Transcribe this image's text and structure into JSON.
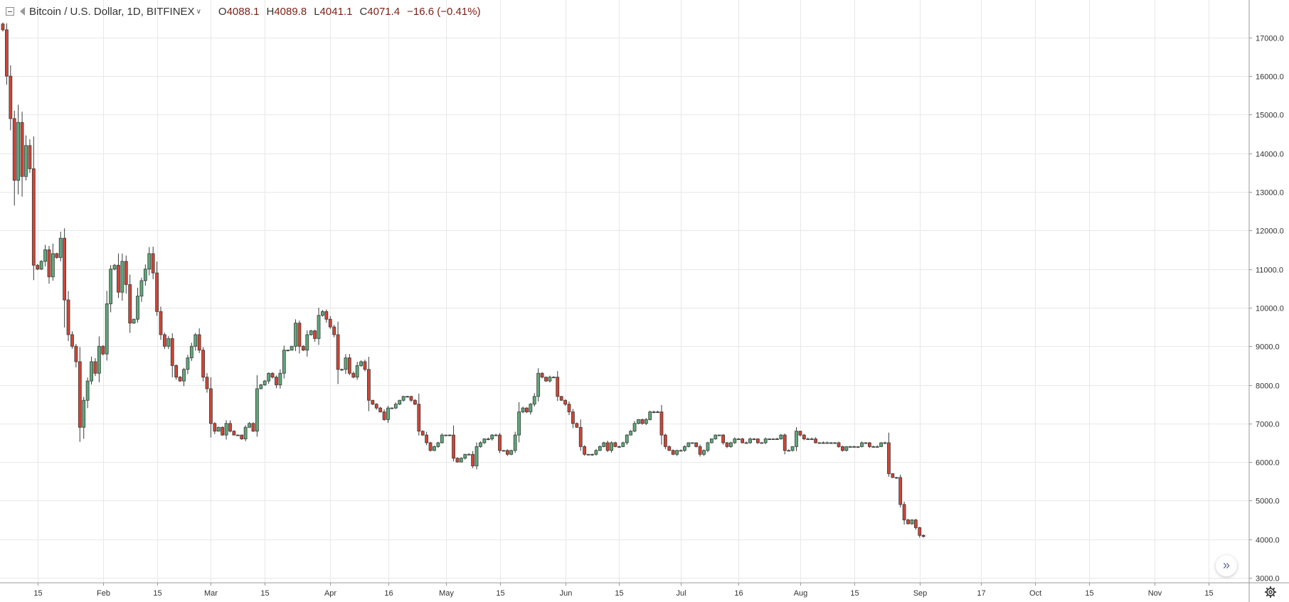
{
  "header": {
    "symbol": "Bitcoin / U.S. Dollar, 1D, BITFINEX",
    "open": "4088.1",
    "high": "4089.8",
    "low": "4041.1",
    "close": "4071.4",
    "change": "−16.6 (−0.41%)"
  },
  "icons": [
    "collapse-icon",
    "flag-icon",
    "chevron-down-icon",
    "scroll-right-icon",
    "settings-icon"
  ],
  "colors": {
    "up": "#5ea97a",
    "down": "#d24434",
    "grid": "#e8e8e8",
    "text": "#333333"
  },
  "chart_data": {
    "type": "candlestick",
    "title": "",
    "y_axis": {
      "min": 3000,
      "max": 17400,
      "ticks": [
        3000,
        4000,
        5000,
        6000,
        7000,
        8000,
        9000,
        10000,
        11000,
        12000,
        13000,
        14000,
        15000,
        16000,
        17000
      ],
      "tick_labels": [
        "3000.0",
        "4000.0",
        "5000.0",
        "6000.0",
        "7000.0",
        "8000.0",
        "9000.0",
        "10000.0",
        "11000.0",
        "12000.0",
        "13000.0",
        "14000.0",
        "15000.0",
        "16000.0",
        "17000.0"
      ]
    },
    "x_axis": {
      "start_date": "2018-01-06",
      "end_date": "2018-11-21",
      "tick_labels": [
        {
          "date": "2018-01-15",
          "label": "15"
        },
        {
          "date": "2018-02-01",
          "label": "Feb"
        },
        {
          "date": "2018-02-15",
          "label": "15"
        },
        {
          "date": "2018-03-01",
          "label": "Mar"
        },
        {
          "date": "2018-03-15",
          "label": "15"
        },
        {
          "date": "2018-04-01",
          "label": "Apr"
        },
        {
          "date": "2018-04-16",
          "label": "16"
        },
        {
          "date": "2018-05-01",
          "label": "May"
        },
        {
          "date": "2018-05-15",
          "label": "15"
        },
        {
          "date": "2018-06-01",
          "label": "Jun"
        },
        {
          "date": "2018-06-15",
          "label": "15"
        },
        {
          "date": "2018-07-01",
          "label": "Jul"
        },
        {
          "date": "2018-07-16",
          "label": "16"
        },
        {
          "date": "2018-08-01",
          "label": "Aug"
        },
        {
          "date": "2018-08-15",
          "label": "15"
        },
        {
          "date": "2018-09-01",
          "label": "Sep"
        },
        {
          "date": "2018-09-17",
          "label": "17"
        },
        {
          "date": "2018-10-01",
          "label": "Oct"
        },
        {
          "date": "2018-10-15",
          "label": "15"
        },
        {
          "date": "2018-11-01",
          "label": "Nov"
        },
        {
          "date": "2018-11-15",
          "label": "15"
        }
      ]
    },
    "grid": true,
    "closes": [
      17200,
      16000,
      14900,
      13300,
      14800,
      13400,
      14200,
      13600,
      11100,
      11000,
      11200,
      11500,
      10800,
      11400,
      11300,
      11800,
      10200,
      9300,
      9000,
      8600,
      6900,
      7600,
      8100,
      8600,
      8300,
      9000,
      8800,
      10100,
      11000,
      11100,
      10400,
      11200,
      10600,
      9600,
      9700,
      10300,
      10700,
      11000,
      11400,
      10900,
      9900,
      9300,
      9000,
      9200,
      8500,
      8200,
      8100,
      8400,
      8700,
      9000,
      9300,
      8900,
      8200,
      7900,
      7000,
      6800,
      6900,
      6700,
      7000,
      6800,
      6700,
      6700,
      6600,
      6900,
      7000,
      6800,
      7900,
      8000,
      8100,
      8300,
      8200,
      8000,
      8300,
      8900,
      8900,
      9000,
      9600,
      9000,
      8900,
      9300,
      9400,
      9200,
      9800,
      9900,
      9700,
      9500,
      9300,
      8400,
      8400,
      8700,
      8300,
      8200,
      8500,
      8600,
      8400,
      7600,
      7500,
      7400,
      7300,
      7100,
      7400,
      7400,
      7500,
      7600,
      7700,
      7700,
      7600,
      7500,
      6800,
      6700,
      6500,
      6300,
      6400,
      6500,
      6700,
      6700,
      6700,
      6100,
      6000,
      6100,
      6200,
      6200,
      5900,
      6400,
      6500,
      6600,
      6600,
      6700,
      6700,
      6300,
      6300,
      6200,
      6300,
      6700,
      7300,
      7400,
      7300,
      7500,
      7700,
      8300,
      8200,
      8100,
      8200,
      8200,
      7700,
      7600,
      7500,
      7300,
      7000,
      6900,
      6400,
      6200,
      6200,
      6200,
      6300,
      6400,
      6500,
      6300,
      6500,
      6400,
      6400,
      6500,
      6700,
      6800,
      7000,
      7100,
      7000,
      7100,
      7300,
      7300,
      7300,
      6700,
      6400,
      6300,
      6200,
      6300,
      6300,
      6400,
      6500,
      6500,
      6400,
      6200,
      6300,
      6500,
      6600,
      6700,
      6700,
      6500,
      6400,
      6500,
      6600,
      6600,
      6500,
      6500,
      6600,
      6600,
      6500,
      6500,
      6600,
      6600,
      6600,
      6600,
      6700,
      6300,
      6300,
      6400,
      6800,
      6700,
      6600,
      6600,
      6600,
      6500,
      6500,
      6500,
      6500,
      6500,
      6500,
      6400,
      6300,
      6400,
      6400,
      6400,
      6400,
      6500,
      6500,
      6400,
      6400,
      6400,
      6500,
      6500,
      5700,
      5600,
      5600,
      4900,
      4500,
      4400,
      4500,
      4300,
      4100,
      4071
    ]
  }
}
